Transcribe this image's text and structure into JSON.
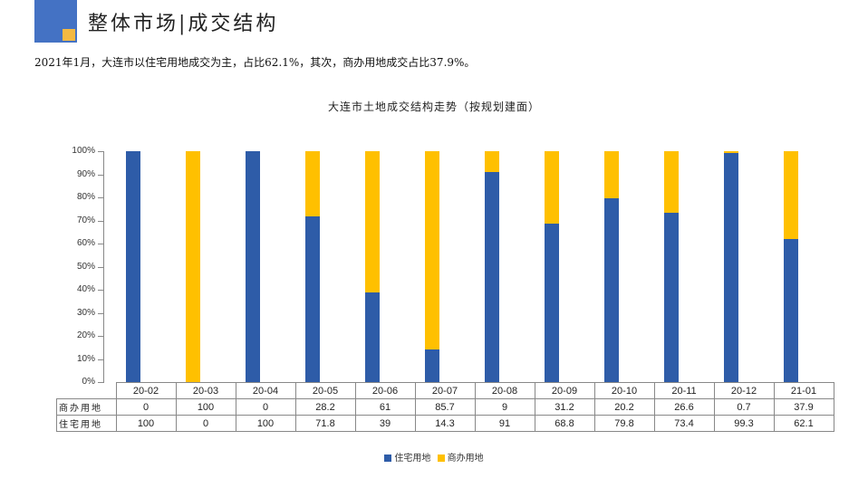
{
  "header": {
    "title": "整体市场|成交结构",
    "logo_colors": {
      "main": "#4472c4",
      "accent": "#f4b942"
    }
  },
  "summary": "2021年1月，大连市以住宅用地成交为主，占比62.1%，其次，商办用地成交占比37.9%。",
  "chart_data": {
    "type": "bar",
    "stacked": true,
    "percent_stacked": true,
    "title": "大连市土地成交结构走势（按规划建面）",
    "xlabel": "",
    "ylabel": "",
    "ylim": [
      0,
      100
    ],
    "y_ticks": [
      "0%",
      "10%",
      "20%",
      "30%",
      "40%",
      "50%",
      "60%",
      "70%",
      "80%",
      "90%",
      "100%"
    ],
    "categories": [
      "20-02",
      "20-03",
      "20-04",
      "20-05",
      "20-06",
      "20-07",
      "20-08",
      "20-09",
      "20-10",
      "20-11",
      "20-12",
      "21-01"
    ],
    "series": [
      {
        "name": "住宅用地",
        "color": "#2e5ca8",
        "values": [
          100,
          0,
          100,
          71.8,
          39,
          14.3,
          91,
          68.8,
          79.8,
          73.4,
          99.3,
          62.1
        ]
      },
      {
        "name": "商办用地",
        "color": "#ffc000",
        "values": [
          0,
          100,
          0,
          28.2,
          61,
          85.7,
          9,
          31.2,
          20.2,
          26.6,
          0.7,
          37.9
        ]
      }
    ],
    "data_table": {
      "rows": [
        {
          "label": "商办用地",
          "values": [
            "0",
            "100",
            "0",
            "28.2",
            "61",
            "85.7",
            "9",
            "31.2",
            "20.2",
            "26.6",
            "0.7",
            "37.9"
          ]
        },
        {
          "label": "住宅用地",
          "values": [
            "100",
            "0",
            "100",
            "71.8",
            "39",
            "14.3",
            "91",
            "68.8",
            "79.8",
            "73.4",
            "99.3",
            "62.1"
          ]
        }
      ]
    },
    "legend": [
      "住宅用地",
      "商办用地"
    ],
    "legend_position": "bottom",
    "grid": false
  }
}
